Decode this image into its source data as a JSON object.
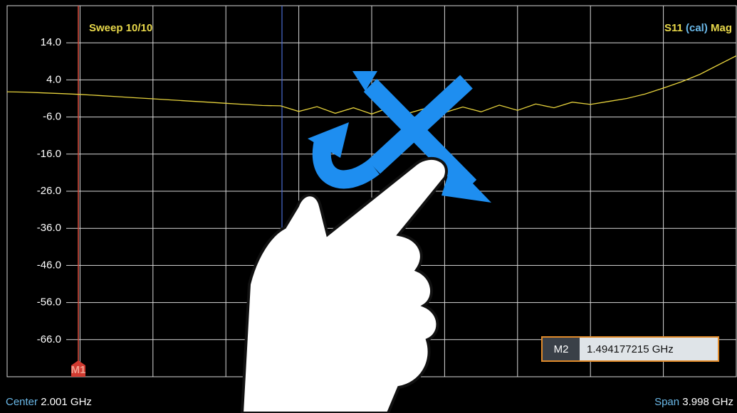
{
  "header": {
    "sweep": "Sweep 10/10",
    "trace": "S11",
    "cal": "(cal)",
    "format": "Mag"
  },
  "chart_data": {
    "type": "line",
    "color": "#e6d23c",
    "ylim": [
      -76,
      24
    ],
    "yticks": [
      {
        "value": 14,
        "label": "14.0"
      },
      {
        "value": 4,
        "label": "4.0"
      },
      {
        "value": -6,
        "label": "-6.0"
      },
      {
        "value": -16,
        "label": "-16.0"
      },
      {
        "value": -26,
        "label": "-26.0"
      },
      {
        "value": -36,
        "label": "-36.0"
      },
      {
        "value": -46,
        "label": "-46.0"
      },
      {
        "value": -56,
        "label": "-56.0"
      },
      {
        "value": -66,
        "label": "-66.0"
      }
    ],
    "grid": true,
    "values": [
      0.8,
      0.7,
      0.5,
      0.3,
      0.1,
      -0.2,
      -0.5,
      -0.8,
      -1.1,
      -1.4,
      -1.7,
      -2.0,
      -2.3,
      -2.6,
      -2.9,
      -3.0,
      -4.5,
      -3.2,
      -5.0,
      -3.5,
      -5.2,
      -3.4,
      -5.0,
      -3.6,
      -4.8,
      -3.3,
      -4.6,
      -2.8,
      -4.2,
      -2.5,
      -3.5,
      -2.0,
      -2.6,
      -1.8,
      -1.0,
      0.2,
      1.8,
      3.5,
      5.5,
      8.0,
      10.5
    ]
  },
  "markers": {
    "m1": "M1",
    "m2": {
      "name": "M2",
      "value": "1.494177215 GHz"
    }
  },
  "footer": {
    "center_label": "Center",
    "center": "2.001 GHz",
    "span_label": "Span",
    "span": "3.998 GHz"
  }
}
